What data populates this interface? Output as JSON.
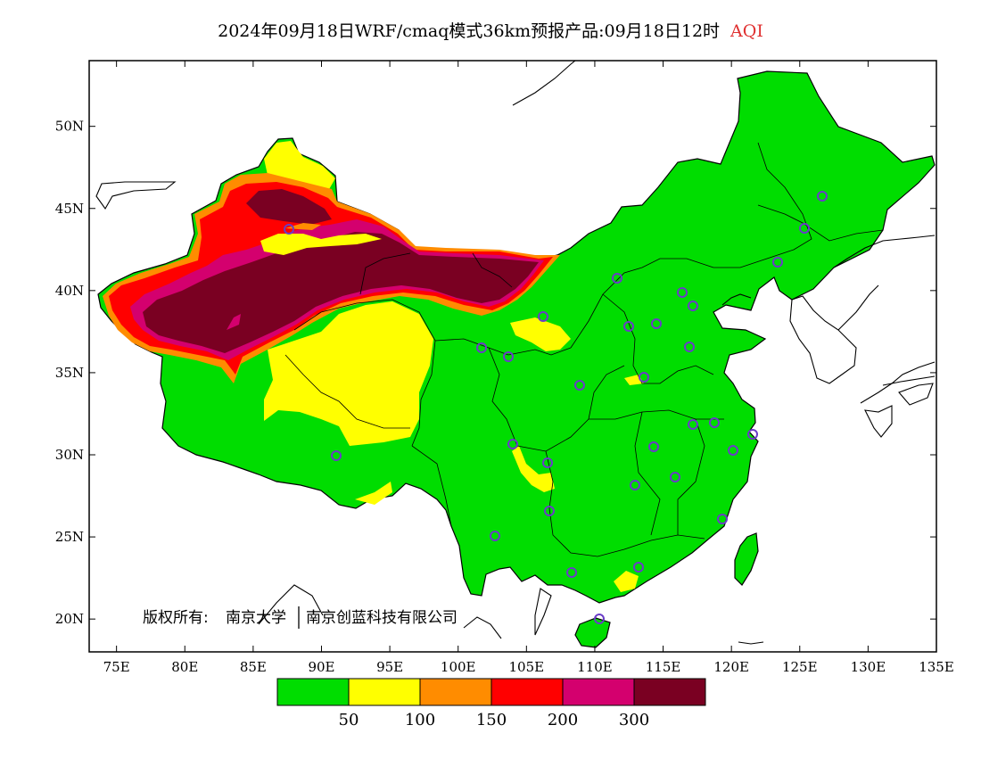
{
  "title": {
    "main": "2024年09月18日WRF/cmaq模式36km预报产品:09月18日12时",
    "variable": "AQI",
    "variable_color": "#e03030"
  },
  "map": {
    "lon_range": [
      73,
      135
    ],
    "lat_range": [
      18,
      54
    ],
    "lon_ticks": [
      "75E",
      "80E",
      "85E",
      "90E",
      "95E",
      "100E",
      "105E",
      "110E",
      "115E",
      "120E",
      "125E",
      "130E",
      "135E"
    ],
    "lat_ticks": [
      "50N",
      "45N",
      "40N",
      "35N",
      "30N",
      "25N",
      "20N"
    ],
    "copyright_prefix": "版权所有:",
    "copyright_org1": "南京大学",
    "copyright_org2": "南京创蓝科技有限公司",
    "city_marker_color": "#6a3cc8"
  },
  "legend": {
    "colors": [
      "#00dd00",
      "#ffff00",
      "#ff8c00",
      "#ff0000",
      "#d4006e",
      "#7a0022"
    ],
    "labels": [
      "50",
      "100",
      "150",
      "200",
      "300"
    ]
  }
}
